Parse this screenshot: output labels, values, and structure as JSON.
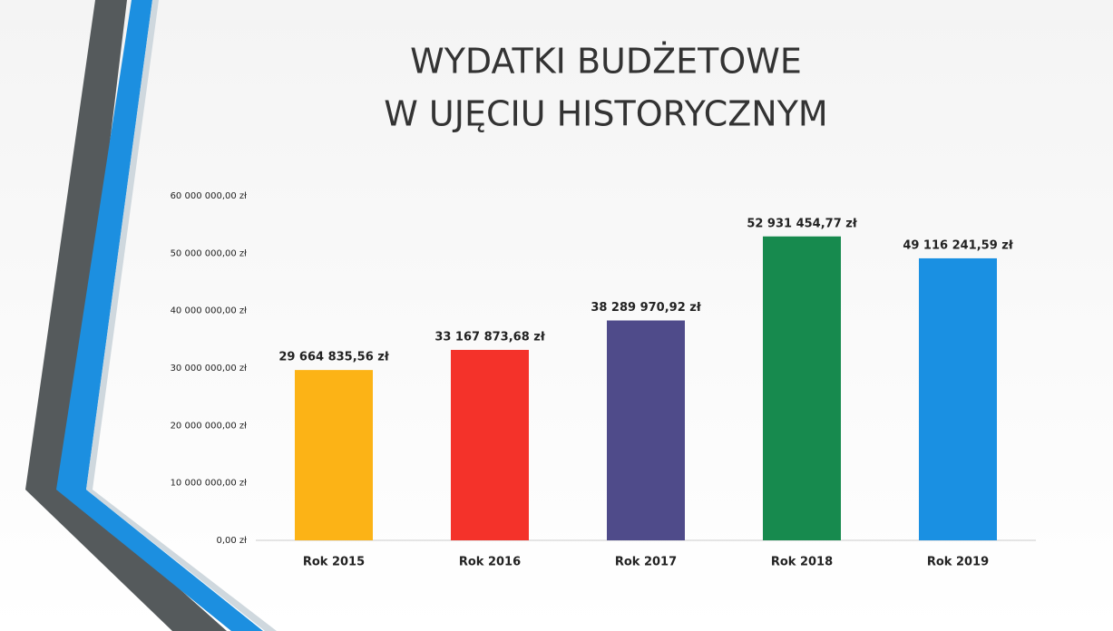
{
  "chart_data": {
    "type": "bar",
    "title_lines": [
      "WYDATKI BUDŻETOWE",
      "W UJĘCIU HISTORYCZNYM"
    ],
    "categories": [
      "Rok 2015",
      "Rok 2016",
      "Rok 2017",
      "Rok 2018",
      "Rok 2019"
    ],
    "values": [
      29664835.56,
      33167873.68,
      38289970.92,
      52931454.77,
      49116241.59
    ],
    "value_labels": [
      "29 664 835,56 zł",
      "33 167 873,68 zł",
      "38 289 970,92 zł",
      "52 931 454,77 zł",
      "49 116 241,59 zł"
    ],
    "colors": [
      "#fcb316",
      "#f4322a",
      "#4f4b8a",
      "#178a4e",
      "#1a90e2"
    ],
    "ylim": [
      0,
      60000000
    ],
    "yticks": [
      {
        "value": 0,
        "label": "0,00 zł"
      },
      {
        "value": 10000000,
        "label": "10 000 000,00 zł"
      },
      {
        "value": 20000000,
        "label": "20 000 000,00 zł"
      },
      {
        "value": 30000000,
        "label": "30 000 000,00 zł"
      },
      {
        "value": 40000000,
        "label": "40 000 000,00 zł"
      },
      {
        "value": 50000000,
        "label": "50 000 000,00 zł"
      },
      {
        "value": 60000000,
        "label": "60 000 000,00 zł"
      }
    ],
    "grid": false
  }
}
